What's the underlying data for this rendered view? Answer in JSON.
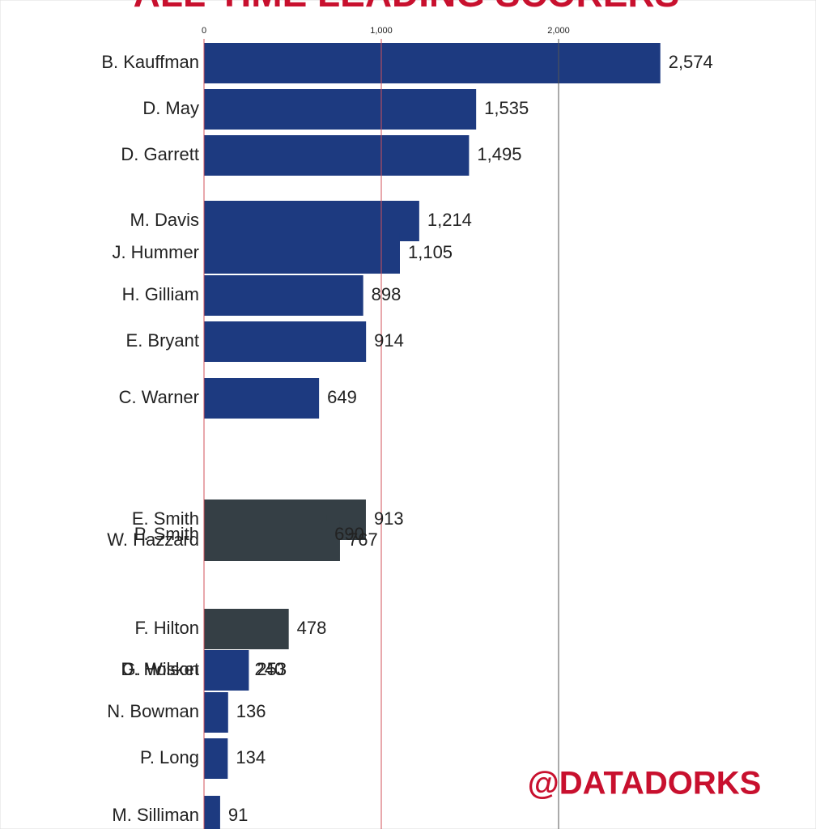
{
  "chart_data": {
    "type": "bar",
    "orientation": "horizontal",
    "title": "ALL-TIME LEADING SCORERS",
    "credit": "@DATADORKS",
    "categories": [
      "B. Kauffman",
      "D. May",
      "D. Garrett",
      "M. Davis",
      "J. Hummer",
      "H. Gilliam",
      "E. Bryant",
      "C. Warner",
      "E. Smith",
      "P. Smith",
      "W. Hazzard",
      "F. Hilton",
      "G. Wilson",
      "D. Hosket",
      "N. Bowman",
      "P. Long",
      "M. Silliman"
    ],
    "values": [
      2574,
      1535,
      1495,
      1214,
      1105,
      898,
      914,
      649,
      913,
      690,
      767,
      478,
      240,
      253,
      136,
      134,
      91
    ],
    "value_labels": [
      "2,574",
      "1,535",
      "1,495",
      "1,214",
      "1,105",
      "898",
      "914",
      "649",
      "913",
      "690",
      "767",
      "478",
      "240",
      "253",
      "136",
      "134",
      "91"
    ],
    "colors": [
      "#1d3a80",
      "#1d3a80",
      "#1d3a80",
      "#1d3a80",
      "#1d3a80",
      "#1d3a80",
      "#1d3a80",
      "#1d3a80",
      "#353f45",
      "#353f45",
      "#353f45",
      "#353f45",
      "#1d3a80",
      "#1d3a80",
      "#1d3a80",
      "#1d3a80",
      "#1d3a80"
    ],
    "xlim": [
      0,
      3400
    ],
    "xticks": [
      0,
      {
        "value": 1000,
        "label": "1,000"
      },
      {
        "value": 2000,
        "label": "2,000"
      }
    ],
    "grid": true
  }
}
